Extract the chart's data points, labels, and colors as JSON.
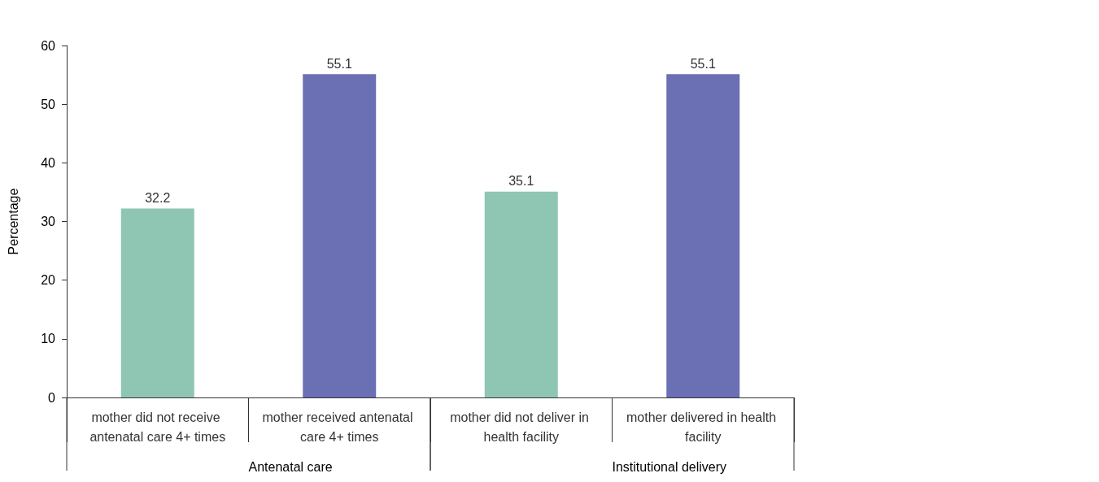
{
  "chart_data": {
    "type": "bar",
    "ylabel": "Percentage",
    "categories": [
      "mother did not receive antenatal care 4+ times",
      "mother received antenatal care 4+ times",
      "mother did not deliver in health facility",
      "mother delivered in health facility"
    ],
    "values": [
      32.2,
      55.1,
      35.1,
      55.1
    ],
    "colors": [
      "#8fc6b3",
      "#6b6fb3",
      "#8fc6b3",
      "#6b6fb3"
    ],
    "ylim": [
      0,
      60
    ],
    "yticks": [
      0,
      10,
      20,
      30,
      40,
      50,
      60
    ],
    "grid": false,
    "data_labels": true,
    "annotations": [
      "Antenatal care",
      "Institutional delivery"
    ]
  }
}
